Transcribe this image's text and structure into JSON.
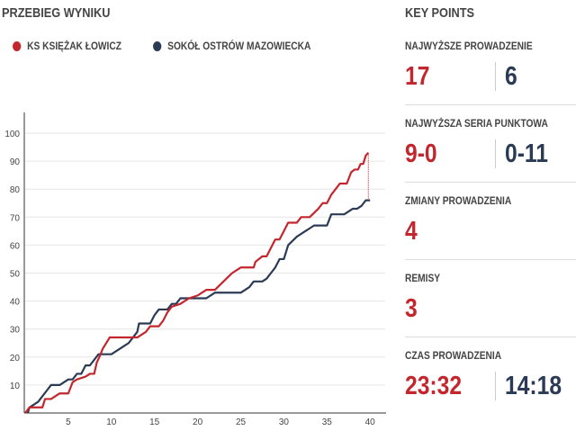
{
  "header": {
    "title": "PRZEBIEG WYNIKU",
    "key_points_title": "KEY POINTS"
  },
  "colors": {
    "home": "#c4262e",
    "away": "#2b3a55"
  },
  "key_points": [
    {
      "label": "NAJWYŻSZE PROWADZENIE",
      "home": "17",
      "away": "6"
    },
    {
      "label": "NAJWYŻSZA SERIA PUNKTOWA",
      "home": "9-0",
      "away": "0-11"
    },
    {
      "label": "ZMIANY PROWADZENIA",
      "home": "4"
    },
    {
      "label": "REMISY",
      "home": "3"
    },
    {
      "label": "CZAS PROWADZENIA",
      "home": "23:32",
      "away": "14:18"
    }
  ],
  "chart_data": {
    "type": "line",
    "title": "PRZEBIEG WYNIKU",
    "xlabel": "",
    "ylabel": "",
    "xlim": [
      0,
      40
    ],
    "ylim": [
      0,
      105
    ],
    "xticks": [
      5,
      10,
      15,
      20,
      25,
      30,
      35,
      40
    ],
    "yticks": [
      10,
      20,
      30,
      40,
      50,
      60,
      70,
      80,
      90,
      100
    ],
    "legend_position": "top-left",
    "grid": true,
    "series": [
      {
        "name": "KS KSIĘŻAK ŁOWICZ",
        "color": "#c4262e",
        "points": [
          [
            0,
            0
          ],
          [
            0.5,
            2
          ],
          [
            2,
            2
          ],
          [
            2.3,
            5
          ],
          [
            3,
            5
          ],
          [
            4,
            7
          ],
          [
            5,
            7
          ],
          [
            5.5,
            11
          ],
          [
            6,
            12
          ],
          [
            7,
            13
          ],
          [
            7.5,
            14
          ],
          [
            8,
            14
          ],
          [
            8.3,
            18
          ],
          [
            8.6,
            20
          ],
          [
            9,
            23
          ],
          [
            9.8,
            27
          ],
          [
            13,
            27
          ],
          [
            14,
            29
          ],
          [
            14.5,
            31
          ],
          [
            15.5,
            31
          ],
          [
            16,
            33
          ],
          [
            16.5,
            36
          ],
          [
            17,
            38
          ],
          [
            18,
            39
          ],
          [
            19,
            41
          ],
          [
            20,
            42
          ],
          [
            21,
            44
          ],
          [
            22,
            44
          ],
          [
            23,
            47
          ],
          [
            24,
            50
          ],
          [
            25,
            52
          ],
          [
            26.5,
            52
          ],
          [
            26.7,
            54
          ],
          [
            27.5,
            56
          ],
          [
            28,
            56
          ],
          [
            28.5,
            59
          ],
          [
            29,
            62
          ],
          [
            29.5,
            62
          ],
          [
            30,
            65
          ],
          [
            30.5,
            68
          ],
          [
            31.5,
            68
          ],
          [
            32,
            70
          ],
          [
            33,
            70
          ],
          [
            34,
            73
          ],
          [
            34.5,
            75
          ],
          [
            35,
            75
          ],
          [
            35.5,
            78
          ],
          [
            36.5,
            82
          ],
          [
            37.3,
            82
          ],
          [
            37.8,
            86
          ],
          [
            38.2,
            87
          ],
          [
            38.6,
            87
          ],
          [
            38.9,
            89
          ],
          [
            39.2,
            89
          ],
          [
            39.5,
            92
          ],
          [
            39.8,
            93
          ]
        ]
      },
      {
        "name": "SOKÓŁ OSTRÓW MAZOWIECKA",
        "color": "#2b3a55",
        "points": [
          [
            0.3,
            0
          ],
          [
            0.5,
            2
          ],
          [
            1.5,
            4
          ],
          [
            2,
            6
          ],
          [
            2.5,
            8
          ],
          [
            3,
            10
          ],
          [
            4,
            10
          ],
          [
            5,
            12
          ],
          [
            5.5,
            12
          ],
          [
            6,
            14
          ],
          [
            6.5,
            14
          ],
          [
            7,
            17
          ],
          [
            7.5,
            17
          ],
          [
            8,
            19
          ],
          [
            8.5,
            21
          ],
          [
            10,
            21
          ],
          [
            11,
            23
          ],
          [
            12,
            25
          ],
          [
            12.5,
            27
          ],
          [
            13,
            29
          ],
          [
            13.2,
            32
          ],
          [
            14.5,
            32
          ],
          [
            15,
            35
          ],
          [
            15.5,
            37
          ],
          [
            16.5,
            37
          ],
          [
            17,
            39
          ],
          [
            17.5,
            39
          ],
          [
            18,
            41
          ],
          [
            21,
            41
          ],
          [
            22,
            43
          ],
          [
            25,
            43
          ],
          [
            26,
            45
          ],
          [
            26.5,
            47
          ],
          [
            27.5,
            47
          ],
          [
            28,
            48
          ],
          [
            28.5,
            50
          ],
          [
            29,
            52
          ],
          [
            29.5,
            55
          ],
          [
            30,
            55
          ],
          [
            30.5,
            60
          ],
          [
            31.5,
            63
          ],
          [
            32.5,
            65
          ],
          [
            33,
            66
          ],
          [
            33.5,
            67
          ],
          [
            35,
            67
          ],
          [
            35.5,
            71
          ],
          [
            37,
            71
          ],
          [
            37.5,
            72
          ],
          [
            38,
            73
          ],
          [
            38.5,
            73
          ],
          [
            39,
            74
          ],
          [
            39.5,
            76
          ],
          [
            40,
            76
          ]
        ]
      }
    ]
  }
}
